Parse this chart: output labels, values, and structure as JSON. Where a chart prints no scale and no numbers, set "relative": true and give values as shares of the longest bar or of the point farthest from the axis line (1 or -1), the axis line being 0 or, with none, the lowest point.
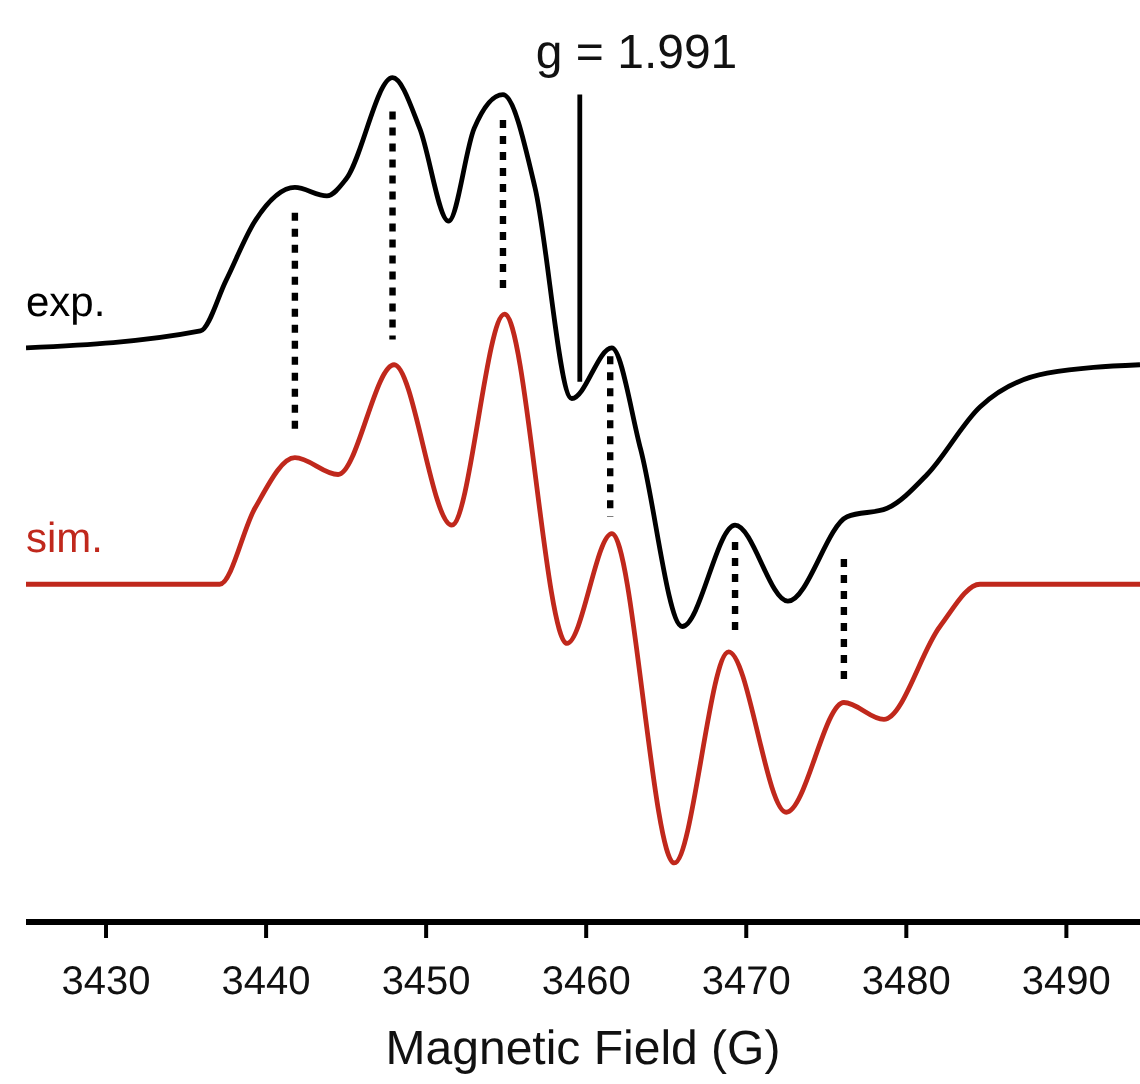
{
  "chart_data": {
    "type": "line",
    "relative": true,
    "xlabel": "Magnetic Field (G)",
    "xlim": [
      3425,
      3494.6
    ],
    "xticks": [
      3430,
      3440,
      3450,
      3460,
      3470,
      3480,
      3490
    ],
    "grid": false,
    "marker": "none",
    "tick_labels": "x",
    "annotations": [
      {
        "text": "g = 1.991",
        "x": 3459.6,
        "y": 0.98
      }
    ],
    "series": [
      {
        "name": "exp.",
        "color": "#000000",
        "line_style": "solid",
        "x": [
          3425,
          3435.9,
          3437.5,
          3439.3,
          3441.8,
          3443.8,
          3445,
          3447.9,
          3449.6,
          3451.4,
          3453,
          3454.8,
          3456.8,
          3459.1,
          3461.6,
          3463.4,
          3466,
          3469.3,
          3472.6,
          3476.3,
          3478.8,
          3481.3,
          3484.6,
          3488.8,
          3494.6
        ],
        "values": [
          0.68,
          0.7,
          0.76,
          0.83,
          0.87,
          0.86,
          0.88,
          1.0,
          0.94,
          0.83,
          0.94,
          0.98,
          0.87,
          0.62,
          0.68,
          0.56,
          0.35,
          0.47,
          0.38,
          0.48,
          0.49,
          0.53,
          0.61,
          0.65,
          0.66
        ]
      },
      {
        "name": "sim.",
        "color": "#c0281c",
        "line_style": "solid",
        "x": [
          3425,
          3435.9,
          3437.1,
          3439.3,
          3441.8,
          3444.5,
          3448,
          3451.6,
          3454.9,
          3458.8,
          3461.6,
          3465.5,
          3468.9,
          3472.5,
          3476.1,
          3478.6,
          3482.1,
          3484.6,
          3494.6
        ],
        "values": [
          0.4,
          0.4,
          0.4,
          0.49,
          0.55,
          0.53,
          0.66,
          0.47,
          0.72,
          0.33,
          0.46,
          0.07,
          0.32,
          0.13,
          0.26,
          0.24,
          0.35,
          0.4,
          0.4
        ]
      },
      {
        "color": "#000000",
        "line_style": "solid",
        "x": [
          3459.6,
          3459.6
        ],
        "values": [
          0.98,
          0.64
        ]
      },
      {
        "color": "#000000",
        "line_style": "dotted",
        "x": [
          3441.8,
          3441.8
        ],
        "values": [
          0.84,
          0.58
        ]
      },
      {
        "color": "#000000",
        "line_style": "dotted",
        "x": [
          3447.9,
          3447.9
        ],
        "values": [
          0.96,
          0.69
        ]
      },
      {
        "color": "#000000",
        "line_style": "dotted",
        "x": [
          3454.8,
          3454.8
        ],
        "values": [
          0.95,
          0.75
        ]
      },
      {
        "color": "#000000",
        "line_style": "dotted",
        "x": [
          3461.5,
          3461.5
        ],
        "values": [
          0.67,
          0.48
        ]
      },
      {
        "color": "#000000",
        "line_style": "dotted",
        "x": [
          3469.3,
          3469.3
        ],
        "values": [
          0.45,
          0.34
        ]
      },
      {
        "color": "#000000",
        "line_style": "dotted",
        "x": [
          3476.1,
          3476.1
        ],
        "values": [
          0.43,
          0.28
        ]
      }
    ]
  }
}
